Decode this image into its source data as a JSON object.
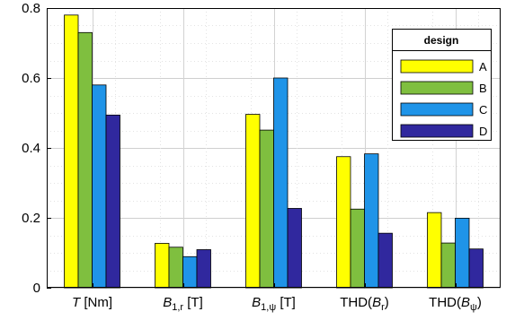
{
  "chart_data": {
    "type": "bar",
    "categories": [
      {
        "parts": [
          {
            "text": "T",
            "style": "italic"
          },
          {
            "text": " [Nm]"
          }
        ]
      },
      {
        "parts": [
          {
            "text": "B",
            "style": "italic"
          },
          {
            "text": "1,r",
            "sub": true
          },
          {
            "text": " [T]"
          }
        ]
      },
      {
        "parts": [
          {
            "text": "B",
            "style": "italic"
          },
          {
            "text": "1,ψ",
            "sub": true
          },
          {
            "text": " [T]"
          }
        ]
      },
      {
        "parts": [
          {
            "text": "THD("
          },
          {
            "text": "B",
            "style": "italic"
          },
          {
            "text": "r",
            "sub": true
          },
          {
            "text": ")"
          }
        ]
      },
      {
        "parts": [
          {
            "text": "THD("
          },
          {
            "text": "B",
            "style": "italic"
          },
          {
            "text": "ψ",
            "sub": true
          },
          {
            "text": ")"
          }
        ]
      }
    ],
    "series": [
      {
        "name": "A",
        "color": "#ffff00",
        "values": [
          0.78,
          0.127,
          0.496,
          0.375,
          0.215
        ]
      },
      {
        "name": "B",
        "color": "#7fbf3f",
        "values": [
          0.73,
          0.116,
          0.451,
          0.225,
          0.128
        ]
      },
      {
        "name": "C",
        "color": "#1f94e8",
        "values": [
          0.58,
          0.089,
          0.6,
          0.383,
          0.199
        ]
      },
      {
        "name": "D",
        "color": "#30289e",
        "values": [
          0.494,
          0.109,
          0.227,
          0.156,
          0.111
        ]
      }
    ],
    "ylim": [
      0,
      0.8
    ],
    "yticks": [
      "0",
      "0.2",
      "0.4",
      "0.6",
      "0.8"
    ],
    "grid": true,
    "legend": {
      "title": "design",
      "position": "top-right"
    }
  }
}
